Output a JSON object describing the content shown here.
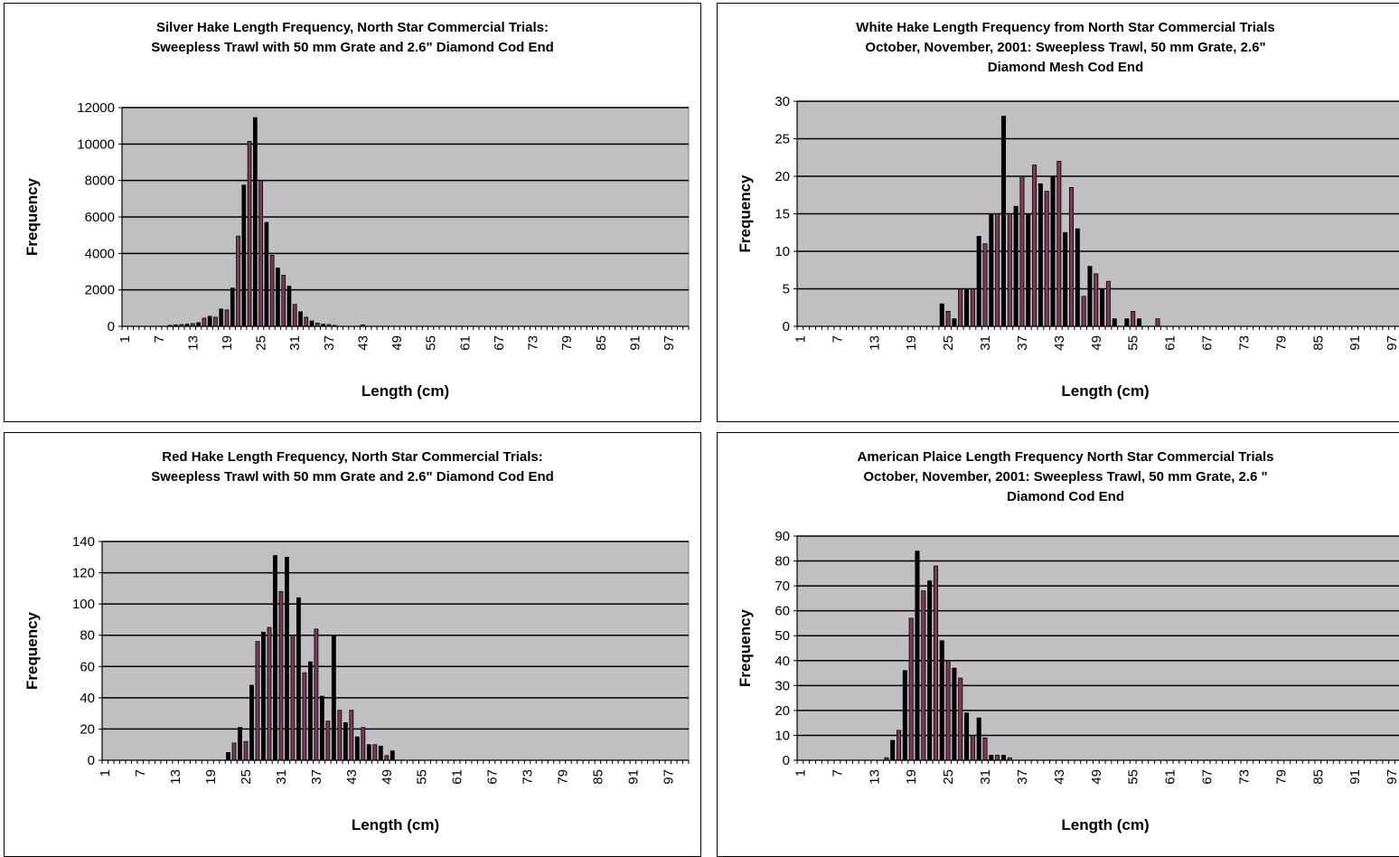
{
  "chart_data": [
    {
      "type": "bar",
      "title_lines": [
        "Silver Hake Length Frequency, North Star Commercial Trials:",
        "Sweepless Trawl with 50 mm Grate and 2.6\" Diamond Cod End"
      ],
      "xlabel": "Length (cm)",
      "ylabel": "Frequency",
      "ylim": [
        0,
        12000
      ],
      "yticks": [
        0,
        2000,
        4000,
        6000,
        8000,
        10000,
        12000
      ],
      "x_tick_labels": [
        "1",
        "7",
        "13",
        "19",
        "25",
        "31",
        "37",
        "43",
        "49",
        "55",
        "61",
        "67",
        "73",
        "79",
        "85",
        "91",
        "97"
      ],
      "x": [
        1,
        2,
        3,
        4,
        5,
        6,
        7,
        8,
        9,
        10,
        11,
        12,
        13,
        14,
        15,
        16,
        17,
        18,
        19,
        20,
        21,
        22,
        23,
        24,
        25,
        26,
        27,
        28,
        29,
        30,
        31,
        32,
        33,
        34,
        35,
        36,
        37,
        38,
        39,
        40,
        41,
        42,
        43,
        44,
        45,
        46,
        47,
        48,
        49,
        50,
        51,
        52,
        53,
        54,
        55,
        56,
        57,
        58,
        59,
        60,
        61,
        62,
        63,
        64,
        65,
        66,
        67,
        68,
        69,
        70,
        71,
        72,
        73,
        74,
        75,
        76,
        77,
        78,
        79,
        80,
        81,
        82,
        83,
        84,
        85,
        86,
        87,
        88,
        89,
        90,
        91,
        92,
        93,
        94,
        95,
        96,
        97,
        98,
        99,
        100
      ],
      "values": [
        0,
        0,
        0,
        0,
        0,
        0,
        0,
        0,
        50,
        80,
        100,
        120,
        150,
        200,
        450,
        550,
        500,
        950,
        900,
        2100,
        4950,
        7750,
        10150,
        11450,
        8000,
        5700,
        3900,
        3200,
        2800,
        2200,
        1200,
        800,
        500,
        300,
        180,
        120,
        100,
        50,
        0,
        0,
        0,
        0,
        80,
        0,
        0,
        0,
        0,
        0,
        0,
        0,
        0,
        0,
        0,
        0,
        0,
        0,
        0,
        0,
        0,
        0,
        0,
        0,
        0,
        0,
        0,
        0,
        0,
        0,
        0,
        0,
        0,
        0,
        0,
        0,
        0,
        0,
        0,
        0,
        0,
        0,
        0,
        0,
        0,
        0,
        0,
        0,
        0,
        0,
        0,
        0,
        0,
        0,
        0,
        0,
        0,
        0,
        0,
        0,
        0,
        0
      ],
      "grid": true,
      "colors": {
        "plot_bg": "#c0c0c0",
        "bar_a": "#000000",
        "bar_b": "#7b3a5b"
      }
    },
    {
      "type": "bar",
      "title_lines": [
        "White Hake Length Frequency from North Star Commercial Trials",
        "October, November, 2001:  Sweepless Trawl, 50 mm Grate, 2.6\"",
        "Diamond Mesh Cod End"
      ],
      "xlabel": "Length (cm)",
      "ylabel": "Frequency",
      "ylim": [
        0,
        30
      ],
      "yticks": [
        0,
        5,
        10,
        15,
        20,
        25,
        30
      ],
      "x_tick_labels": [
        "1",
        "7",
        "13",
        "19",
        "25",
        "31",
        "37",
        "43",
        "49",
        "55",
        "61",
        "67",
        "73",
        "79",
        "85",
        "91",
        "97"
      ],
      "x": [
        1,
        2,
        3,
        4,
        5,
        6,
        7,
        8,
        9,
        10,
        11,
        12,
        13,
        14,
        15,
        16,
        17,
        18,
        19,
        20,
        21,
        22,
        23,
        24,
        25,
        26,
        27,
        28,
        29,
        30,
        31,
        32,
        33,
        34,
        35,
        36,
        37,
        38,
        39,
        40,
        41,
        42,
        43,
        44,
        45,
        46,
        47,
        48,
        49,
        50,
        51,
        52,
        53,
        54,
        55,
        56,
        57,
        58,
        59,
        60,
        61,
        62,
        63,
        64,
        65,
        66,
        67,
        68,
        69,
        70,
        71,
        72,
        73,
        74,
        75,
        76,
        77,
        78,
        79,
        80,
        81,
        82,
        83,
        84,
        85,
        86,
        87,
        88,
        89,
        90,
        91,
        92,
        93,
        94,
        95,
        96,
        97,
        98,
        99,
        100
      ],
      "values": [
        0,
        0,
        0,
        0,
        0,
        0,
        0,
        0,
        0,
        0,
        0,
        0,
        0,
        0,
        0,
        0,
        0,
        0,
        0,
        0,
        0,
        0,
        0,
        3,
        2,
        1,
        5,
        5,
        5,
        12,
        11,
        15,
        15,
        28,
        15,
        16,
        20,
        15,
        21.5,
        19,
        18,
        20,
        22,
        12.5,
        18.5,
        13,
        4,
        8,
        7,
        5,
        6,
        1,
        0,
        1,
        2,
        1,
        0,
        0,
        1,
        0,
        0,
        0,
        0,
        0,
        0,
        0,
        0,
        0,
        0,
        0,
        0,
        0,
        0,
        0,
        0,
        0,
        0,
        0,
        0,
        0,
        0,
        0,
        0,
        0,
        0,
        0,
        0,
        0,
        0,
        0,
        0,
        0,
        0,
        0,
        0,
        0,
        0,
        0,
        0,
        0
      ],
      "grid": true,
      "colors": {
        "plot_bg": "#c0c0c0",
        "bar_a": "#000000",
        "bar_b": "#7b3a5b"
      }
    },
    {
      "type": "bar",
      "title_lines": [
        "Red Hake Length Frequency, North Star Commercial Trials:",
        "Sweepless Trawl with 50 mm Grate and 2.6\" Diamond Cod End"
      ],
      "xlabel": "Length (cm)",
      "ylabel": "Frequency",
      "ylim": [
        0,
        140
      ],
      "yticks": [
        0,
        20,
        40,
        60,
        80,
        100,
        120,
        140
      ],
      "x_tick_labels": [
        "1",
        "7",
        "13",
        "19",
        "25",
        "31",
        "37",
        "43",
        "49",
        "55",
        "61",
        "67",
        "73",
        "79",
        "85",
        "91",
        "97"
      ],
      "x": [
        1,
        2,
        3,
        4,
        5,
        6,
        7,
        8,
        9,
        10,
        11,
        12,
        13,
        14,
        15,
        16,
        17,
        18,
        19,
        20,
        21,
        22,
        23,
        24,
        25,
        26,
        27,
        28,
        29,
        30,
        31,
        32,
        33,
        34,
        35,
        36,
        37,
        38,
        39,
        40,
        41,
        42,
        43,
        44,
        45,
        46,
        47,
        48,
        49,
        50,
        51,
        52,
        53,
        54,
        55,
        56,
        57,
        58,
        59,
        60,
        61,
        62,
        63,
        64,
        65,
        66,
        67,
        68,
        69,
        70,
        71,
        72,
        73,
        74,
        75,
        76,
        77,
        78,
        79,
        80,
        81,
        82,
        83,
        84,
        85,
        86,
        87,
        88,
        89,
        90,
        91,
        92,
        93,
        94,
        95,
        96,
        97,
        98,
        99,
        100
      ],
      "values": [
        0,
        0,
        0,
        0,
        0,
        0,
        0,
        0,
        0,
        0,
        0,
        0,
        0,
        0,
        0,
        0,
        0,
        0,
        0,
        0,
        0,
        5,
        11,
        21,
        12,
        48,
        76,
        82,
        85,
        131,
        108,
        130,
        80,
        104,
        56,
        63,
        84,
        41,
        25,
        80,
        32,
        24,
        32,
        15,
        21,
        10,
        10,
        9,
        3,
        6,
        0,
        0,
        0,
        0,
        0,
        0,
        0,
        0,
        0,
        0,
        0,
        0,
        0,
        0,
        0,
        0,
        0,
        0,
        0,
        0,
        0,
        0,
        0,
        0,
        0,
        0,
        0,
        0,
        0,
        0,
        0,
        0,
        0,
        0,
        0,
        0,
        0,
        0,
        0,
        0,
        0,
        0,
        0,
        0,
        0,
        0,
        0,
        0,
        0,
        0
      ],
      "grid": true,
      "colors": {
        "plot_bg": "#c0c0c0",
        "bar_a": "#000000",
        "bar_b": "#7b3a5b"
      }
    },
    {
      "type": "bar",
      "title_lines": [
        "American Plaice Length Frequency North Star Commercial Trials",
        "October, November, 2001: Sweepless Trawl, 50 mm Grate, 2.6 \"",
        "Diamond Cod End"
      ],
      "xlabel": "Length (cm)",
      "ylabel": "Frequency",
      "ylim": [
        0,
        90
      ],
      "yticks": [
        0,
        10,
        20,
        30,
        40,
        50,
        60,
        70,
        80,
        90
      ],
      "x_tick_labels": [
        "1",
        "7",
        "13",
        "19",
        "25",
        "31",
        "37",
        "43",
        "49",
        "55",
        "61",
        "67",
        "73",
        "79",
        "85",
        "91",
        "97"
      ],
      "x": [
        1,
        2,
        3,
        4,
        5,
        6,
        7,
        8,
        9,
        10,
        11,
        12,
        13,
        14,
        15,
        16,
        17,
        18,
        19,
        20,
        21,
        22,
        23,
        24,
        25,
        26,
        27,
        28,
        29,
        30,
        31,
        32,
        33,
        34,
        35,
        36,
        37,
        38,
        39,
        40,
        41,
        42,
        43,
        44,
        45,
        46,
        47,
        48,
        49,
        50,
        51,
        52,
        53,
        54,
        55,
        56,
        57,
        58,
        59,
        60,
        61,
        62,
        63,
        64,
        65,
        66,
        67,
        68,
        69,
        70,
        71,
        72,
        73,
        74,
        75,
        76,
        77,
        78,
        79,
        80,
        81,
        82,
        83,
        84,
        85,
        86,
        87,
        88,
        89,
        90,
        91,
        92,
        93,
        94,
        95,
        96,
        97,
        98,
        99,
        100
      ],
      "values": [
        0,
        0,
        0,
        0,
        0,
        0,
        0,
        0,
        0,
        0,
        0,
        0,
        0,
        0,
        1,
        8,
        12,
        36,
        57,
        84,
        68,
        72,
        78,
        48,
        40,
        37,
        33,
        19,
        10,
        17,
        9,
        2,
        2,
        2,
        1,
        0,
        0,
        0,
        0,
        0,
        0,
        0,
        0,
        0,
        0,
        0,
        0,
        0,
        0,
        0,
        0,
        0,
        0,
        0,
        0,
        0,
        0,
        0,
        0,
        0,
        0,
        0,
        0,
        0,
        0,
        0,
        0,
        0,
        0,
        0,
        0,
        0,
        0,
        0,
        0,
        0,
        0,
        0,
        0,
        0,
        0,
        0,
        0,
        0,
        0,
        0,
        0,
        0,
        0,
        0,
        0,
        0,
        0,
        0,
        0,
        0,
        0,
        0,
        0,
        0
      ],
      "grid": true,
      "colors": {
        "plot_bg": "#c0c0c0",
        "bar_a": "#000000",
        "bar_b": "#7b3a5b"
      }
    }
  ]
}
